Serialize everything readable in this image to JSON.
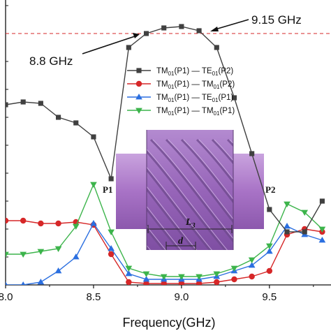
{
  "chart_data": {
    "type": "line",
    "xlabel": "Frequency(GHz)",
    "ylabel": "",
    "xlim": [
      8.0,
      9.85
    ],
    "ylim": [
      0,
      1.02
    ],
    "xticks": [
      8.0,
      8.5,
      9.0,
      9.5
    ],
    "xtick_labels": [
      "8.0",
      "8.5",
      "9.0",
      "9.5"
    ],
    "reference_line": {
      "y": 0.9,
      "style": "dashed",
      "color": "#d62728"
    },
    "annotations": [
      {
        "text": "9.15 GHz",
        "x": 9.15,
        "y": 0.9
      },
      {
        "text": "8.8 GHz",
        "x": 8.8,
        "y": 0.9
      }
    ],
    "x": [
      8.0,
      8.1,
      8.2,
      8.3,
      8.4,
      8.5,
      8.6,
      8.7,
      8.8,
      8.9,
      9.0,
      9.1,
      9.2,
      9.3,
      9.4,
      9.5,
      9.6,
      9.7,
      9.8
    ],
    "series": [
      {
        "legend": [
          "TM",
          "01",
          "(P1) — TE",
          "01",
          "(P2)"
        ],
        "color": "#404040",
        "marker": "square",
        "values": [
          0.645,
          0.655,
          0.65,
          0.6,
          0.58,
          0.53,
          0.38,
          0.85,
          0.9,
          0.92,
          0.925,
          0.91,
          0.85,
          0.67,
          0.47,
          0.27,
          0.19,
          0.19,
          0.3
        ]
      },
      {
        "legend": [
          "TM",
          "01",
          "(P1) — TM",
          "01",
          "(P2)"
        ],
        "color": "#d62728",
        "marker": "circle",
        "values": [
          0.23,
          0.23,
          0.22,
          0.22,
          0.225,
          0.215,
          0.11,
          0.01,
          0.005,
          0.005,
          0.005,
          0.005,
          0.01,
          0.02,
          0.03,
          0.05,
          0.18,
          0.2,
          0.19
        ]
      },
      {
        "legend": [
          "TM",
          "01",
          "(P1) — TE",
          "01",
          "(P1)"
        ],
        "color": "#2b6fe0",
        "marker": "triangle-up",
        "values": [
          0.0,
          0.0,
          0.01,
          0.05,
          0.1,
          0.22,
          0.13,
          0.04,
          0.02,
          0.02,
          0.02,
          0.02,
          0.03,
          0.05,
          0.07,
          0.12,
          0.21,
          0.18,
          0.16
        ]
      },
      {
        "legend": [
          "TM",
          "01",
          "(P1) — TM",
          "01",
          "(P1)"
        ],
        "color": "#3cb44b",
        "marker": "triangle-down",
        "values": [
          0.11,
          0.11,
          0.12,
          0.13,
          0.21,
          0.36,
          0.19,
          0.06,
          0.04,
          0.03,
          0.03,
          0.03,
          0.04,
          0.06,
          0.09,
          0.14,
          0.29,
          0.26,
          0.2
        ]
      }
    ]
  },
  "inset": {
    "port_left": "P1",
    "port_right": "P2",
    "length_label": "L",
    "length_subscript": "3",
    "period_label": "d",
    "tube_color": "#a975c6",
    "groove_color": "#6e4a8c"
  }
}
